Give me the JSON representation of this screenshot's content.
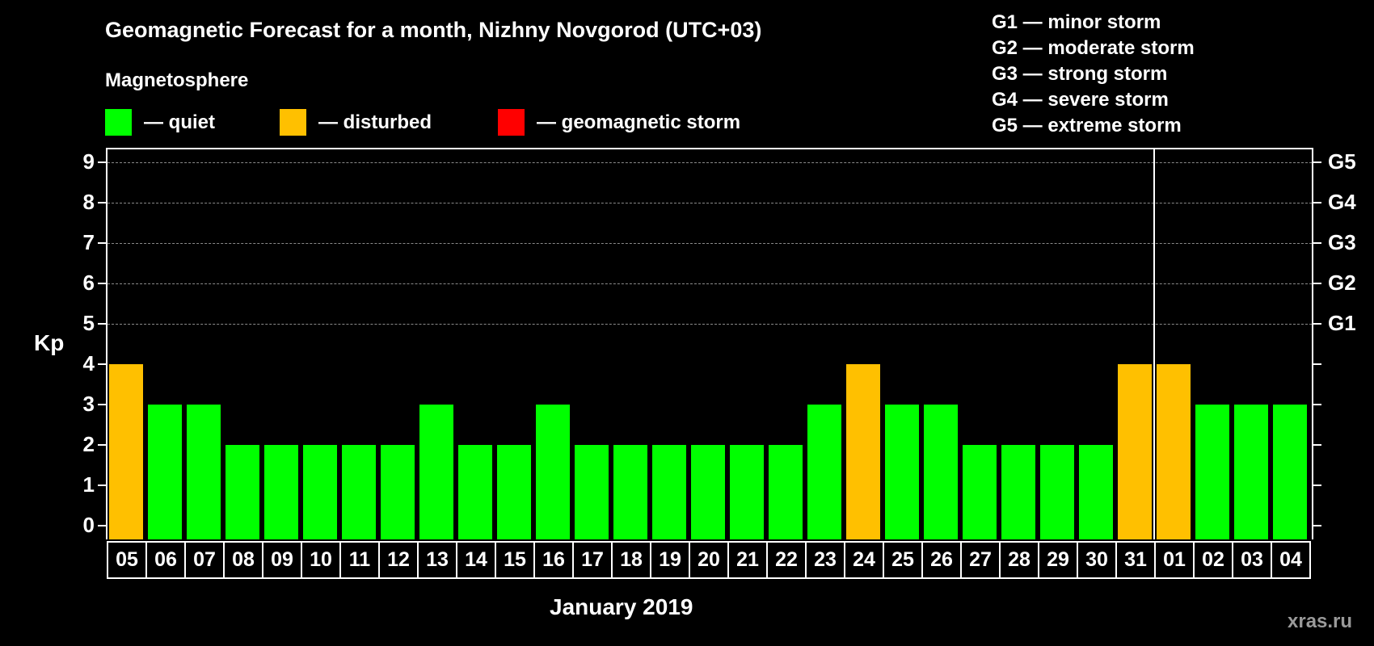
{
  "title": "Geomagnetic Forecast for a month, Nizhny Novgorod (UTC+03)",
  "legend": {
    "heading": "Magnetosphere",
    "items": [
      {
        "label": "— quiet",
        "color": "#00ff00"
      },
      {
        "label": "— disturbed",
        "color": "#ffc000"
      },
      {
        "label": "— geomagnetic storm",
        "color": "#ff0000"
      }
    ]
  },
  "storm_levels": [
    "G1 — minor storm",
    "G2 — moderate storm",
    "G3 — strong storm",
    "G4 — severe storm",
    "G5 — extreme storm"
  ],
  "axis": {
    "ylabel": "Kp",
    "xlabel": "January 2019",
    "yticks": [
      "0",
      "1",
      "2",
      "3",
      "4",
      "5",
      "6",
      "7",
      "8",
      "9"
    ],
    "right_labels": [
      {
        "kp": 5,
        "label": "G1"
      },
      {
        "kp": 6,
        "label": "G2"
      },
      {
        "kp": 7,
        "label": "G3"
      },
      {
        "kp": 8,
        "label": "G4"
      },
      {
        "kp": 9,
        "label": "G5"
      }
    ]
  },
  "watermark": "xras.ru",
  "chart_data": {
    "type": "bar",
    "title": "Geomagnetic Forecast for a month, Nizhny Novgorod (UTC+03)",
    "xlabel": "January 2019",
    "ylabel": "Kp",
    "ylim": [
      0,
      9
    ],
    "grid": "dashed horizontal at Kp 5-9",
    "categories": [
      "05",
      "06",
      "07",
      "08",
      "09",
      "10",
      "11",
      "12",
      "13",
      "14",
      "15",
      "16",
      "17",
      "18",
      "19",
      "20",
      "21",
      "22",
      "23",
      "24",
      "25",
      "26",
      "27",
      "28",
      "29",
      "30",
      "31",
      "01",
      "02",
      "03",
      "04"
    ],
    "values": [
      4,
      3,
      3,
      2,
      2,
      2,
      2,
      2,
      3,
      2,
      2,
      3,
      2,
      2,
      2,
      2,
      2,
      2,
      3,
      4,
      3,
      3,
      2,
      2,
      2,
      2,
      4,
      4,
      3,
      3,
      3
    ],
    "status": [
      "disturbed",
      "quiet",
      "quiet",
      "quiet",
      "quiet",
      "quiet",
      "quiet",
      "quiet",
      "quiet",
      "quiet",
      "quiet",
      "quiet",
      "quiet",
      "quiet",
      "quiet",
      "quiet",
      "quiet",
      "quiet",
      "quiet",
      "disturbed",
      "quiet",
      "quiet",
      "quiet",
      "quiet",
      "quiet",
      "quiet",
      "disturbed",
      "disturbed",
      "quiet",
      "quiet",
      "quiet"
    ],
    "colors": {
      "quiet": "#00ff00",
      "disturbed": "#ffc000",
      "storm": "#ff0000"
    },
    "month_separator_after": "31",
    "right_axis": {
      "5": "G1",
      "6": "G2",
      "7": "G3",
      "8": "G4",
      "9": "G5"
    }
  }
}
